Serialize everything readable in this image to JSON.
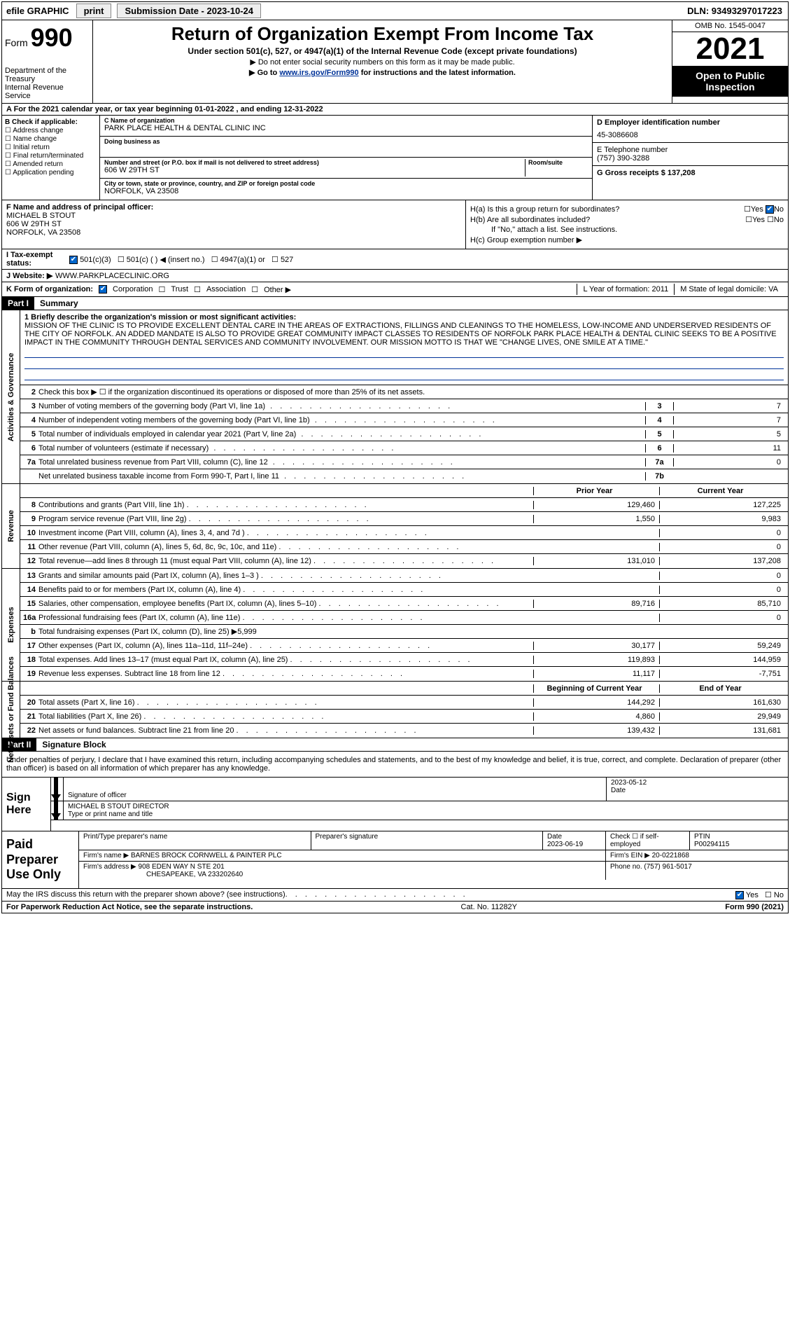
{
  "topbar": {
    "efile": "efile GRAPHIC",
    "print": "print",
    "submission_label": "Submission Date - 2023-10-24",
    "dln_label": "DLN: 93493297017223"
  },
  "header": {
    "form_prefix": "Form",
    "form_number": "990",
    "dept": "Department of the Treasury",
    "irs": "Internal Revenue Service",
    "title": "Return of Organization Exempt From Income Tax",
    "subtitle": "Under section 501(c), 527, or 4947(a)(1) of the Internal Revenue Code (except private foundations)",
    "sub2": "▶ Do not enter social security numbers on this form as it may be made public.",
    "sub3_pre": "▶ Go to ",
    "sub3_link": "www.irs.gov/Form990",
    "sub3_post": " for instructions and the latest information.",
    "omb": "OMB No. 1545-0047",
    "year": "2021",
    "open_public": "Open to Public Inspection"
  },
  "line_a": "A  For the 2021 calendar year, or tax year beginning 01-01-2022  , and ending 12-31-2022",
  "col_b": {
    "header": "B Check if applicable:",
    "items": [
      "Address change",
      "Name change",
      "Initial return",
      "Final return/terminated",
      "Amended return",
      "Application pending"
    ]
  },
  "col_c": {
    "name_label": "C Name of organization",
    "name": "PARK PLACE HEALTH & DENTAL CLINIC INC",
    "dba_label": "Doing business as",
    "dba": "",
    "addr_label": "Number and street (or P.O. box if mail is not delivered to street address)",
    "room_label": "Room/suite",
    "addr": "606 W 29TH ST",
    "city_label": "City or town, state or province, country, and ZIP or foreign postal code",
    "city": "NORFOLK, VA  23508"
  },
  "col_d": {
    "ein_label": "D Employer identification number",
    "ein": "45-3086608",
    "phone_label": "E Telephone number",
    "phone": "(757) 390-3288",
    "gross_label": "G Gross receipts $ 137,208"
  },
  "section_f": {
    "label": "F  Name and address of principal officer:",
    "name": "MICHAEL B STOUT",
    "addr1": "606 W 29TH ST",
    "addr2": "NORFOLK, VA  23508"
  },
  "section_h": {
    "ha_label": "H(a)  Is this a group return for subordinates?",
    "hb_label": "H(b)  Are all subordinates included?",
    "hb_note": "If \"No,\" attach a list. See instructions.",
    "hc_label": "H(c)  Group exemption number ▶"
  },
  "section_i": {
    "label": "I  Tax-exempt status:",
    "opts": [
      "501(c)(3)",
      "501(c) (  ) ◀ (insert no.)",
      "4947(a)(1) or",
      "527"
    ]
  },
  "section_j": {
    "label": "J  Website: ▶",
    "value": "WWW.PARKPLACECLINIC.ORG"
  },
  "section_k": {
    "label": "K Form of organization:",
    "opts": [
      "Corporation",
      "Trust",
      "Association",
      "Other ▶"
    ],
    "l_label": "L Year of formation: 2011",
    "m_label": "M State of legal domicile: VA"
  },
  "part1": {
    "header": "Part I",
    "title": "Summary",
    "section_governance": "Activities & Governance",
    "section_revenue": "Revenue",
    "section_expenses": "Expenses",
    "section_net": "Net Assets or Fund Balances",
    "line1_lead": "1  Briefly describe the organization's mission or most significant activities:",
    "line1_text": "MISSION OF THE CLINIC IS TO PROVIDE EXCELLENT DENTAL CARE IN THE AREAS OF EXTRACTIONS, FILLINGS AND CLEANINGS TO THE HOMELESS, LOW-INCOME AND UNDERSERVED RESIDENTS OF THE CITY OF NORFOLK. AN ADDED MANDATE IS ALSO TO PROVIDE GREAT COMMUNITY IMPACT CLASSES TO RESIDENTS OF NORFOLK PARK PLACE HEALTH & DENTAL CLINIC SEEKS TO BE A POSITIVE IMPACT IN THE COMMUNITY THROUGH DENTAL SERVICES AND COMMUNITY INVOLVEMENT. OUR MISSION MOTTO IS THAT WE \"CHANGE LIVES, ONE SMILE AT A TIME.\"",
    "line2": "Check this box ▶ ☐ if the organization discontinued its operations or disposed of more than 25% of its net assets.",
    "lines_gov": [
      {
        "n": "3",
        "t": "Number of voting members of the governing body (Part VI, line 1a)",
        "nc": "3",
        "v": "7"
      },
      {
        "n": "4",
        "t": "Number of independent voting members of the governing body (Part VI, line 1b)",
        "nc": "4",
        "v": "7"
      },
      {
        "n": "5",
        "t": "Total number of individuals employed in calendar year 2021 (Part V, line 2a)",
        "nc": "5",
        "v": "5"
      },
      {
        "n": "6",
        "t": "Total number of volunteers (estimate if necessary)",
        "nc": "6",
        "v": "11"
      },
      {
        "n": "7a",
        "t": "Total unrelated business revenue from Part VIII, column (C), line 12",
        "nc": "7a",
        "v": "0"
      },
      {
        "n": "",
        "t": "Net unrelated business taxable income from Form 990-T, Part I, line 11",
        "nc": "7b",
        "v": ""
      }
    ],
    "hdr_prior": "Prior Year",
    "hdr_current": "Current Year",
    "lines_rev": [
      {
        "n": "8",
        "t": "Contributions and grants (Part VIII, line 1h)",
        "p": "129,460",
        "c": "127,225"
      },
      {
        "n": "9",
        "t": "Program service revenue (Part VIII, line 2g)",
        "p": "1,550",
        "c": "9,983"
      },
      {
        "n": "10",
        "t": "Investment income (Part VIII, column (A), lines 3, 4, and 7d )",
        "p": "",
        "c": "0"
      },
      {
        "n": "11",
        "t": "Other revenue (Part VIII, column (A), lines 5, 6d, 8c, 9c, 10c, and 11e)",
        "p": "",
        "c": "0"
      },
      {
        "n": "12",
        "t": "Total revenue—add lines 8 through 11 (must equal Part VIII, column (A), line 12)",
        "p": "131,010",
        "c": "137,208"
      }
    ],
    "lines_exp": [
      {
        "n": "13",
        "t": "Grants and similar amounts paid (Part IX, column (A), lines 1–3 )",
        "p": "",
        "c": "0"
      },
      {
        "n": "14",
        "t": "Benefits paid to or for members (Part IX, column (A), line 4)",
        "p": "",
        "c": "0"
      },
      {
        "n": "15",
        "t": "Salaries, other compensation, employee benefits (Part IX, column (A), lines 5–10)",
        "p": "89,716",
        "c": "85,710"
      },
      {
        "n": "16a",
        "t": "Professional fundraising fees (Part IX, column (A), line 11e)",
        "p": "",
        "c": "0"
      },
      {
        "n": "b",
        "t": "Total fundraising expenses (Part IX, column (D), line 25) ▶5,999",
        "p": "shade",
        "c": "shade"
      },
      {
        "n": "17",
        "t": "Other expenses (Part IX, column (A), lines 11a–11d, 11f–24e)",
        "p": "30,177",
        "c": "59,249"
      },
      {
        "n": "18",
        "t": "Total expenses. Add lines 13–17 (must equal Part IX, column (A), line 25)",
        "p": "119,893",
        "c": "144,959"
      },
      {
        "n": "19",
        "t": "Revenue less expenses. Subtract line 18 from line 12",
        "p": "11,117",
        "c": "-7,751"
      }
    ],
    "hdr_begin": "Beginning of Current Year",
    "hdr_end": "End of Year",
    "lines_net": [
      {
        "n": "20",
        "t": "Total assets (Part X, line 16)",
        "p": "144,292",
        "c": "161,630"
      },
      {
        "n": "21",
        "t": "Total liabilities (Part X, line 26)",
        "p": "4,860",
        "c": "29,949"
      },
      {
        "n": "22",
        "t": "Net assets or fund balances. Subtract line 21 from line 20",
        "p": "139,432",
        "c": "131,681"
      }
    ]
  },
  "part2": {
    "header": "Part II",
    "title": "Signature Block",
    "declaration": "Under penalties of perjury, I declare that I have examined this return, including accompanying schedules and statements, and to the best of my knowledge and belief, it is true, correct, and complete. Declaration of preparer (other than officer) is based on all information of which preparer has any knowledge.",
    "sign_here": "Sign Here",
    "sig_officer_label": "Signature of officer",
    "sig_date_label": "Date",
    "sig_date": "2023-05-12",
    "name_title": "MICHAEL B STOUT  DIRECTOR",
    "name_title_label": "Type or print name and title",
    "paid": "Paid Preparer Use Only",
    "prep_name_label": "Print/Type preparer's name",
    "prep_sig_label": "Preparer's signature",
    "prep_date_label": "Date",
    "prep_date": "2023-06-19",
    "self_emp": "Check ☐ if self-employed",
    "ptin_label": "PTIN",
    "ptin": "P00294115",
    "firm_name_label": "Firm's name    ▶",
    "firm_name": "BARNES BROCK CORNWELL & PAINTER PLC",
    "firm_ein_label": "Firm's EIN ▶",
    "firm_ein": "20-0221868",
    "firm_addr_label": "Firm's address ▶",
    "firm_addr1": "908 EDEN WAY N STE 201",
    "firm_addr2": "CHESAPEAKE, VA  233202640",
    "phone_label": "Phone no.",
    "phone": "(757) 961-5017"
  },
  "footer": {
    "discuss": "May the IRS discuss this return with the preparer shown above? (see instructions)",
    "paperwork": "For Paperwork Reduction Act Notice, see the separate instructions.",
    "cat": "Cat. No. 11282Y",
    "form": "Form 990 (2021)"
  }
}
